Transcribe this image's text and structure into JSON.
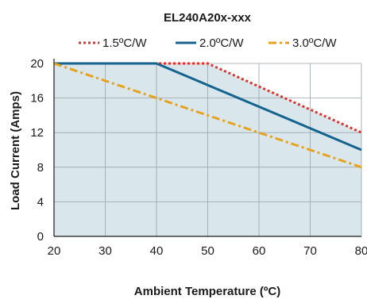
{
  "chart_data": {
    "type": "line",
    "title": "EL240A20x-xxx",
    "xlabel": "Ambient Temperature (ºC)",
    "ylabel": "Load Current (Amps)",
    "xlim": [
      20,
      80
    ],
    "ylim": [
      0,
      20
    ],
    "x_ticks": [
      20,
      30,
      40,
      50,
      60,
      70,
      80
    ],
    "y_ticks": [
      0,
      4,
      8,
      12,
      16,
      20
    ],
    "grid": true,
    "legend_position": "top",
    "area_fill_color": "#d9e6ec",
    "series": [
      {
        "name": "1.5ºC/W",
        "x": [
          20,
          50,
          80
        ],
        "y": [
          20,
          20,
          12
        ],
        "color": "#e0312b",
        "style": "dotted"
      },
      {
        "name": "2.0ºC/W",
        "x": [
          20,
          40,
          80
        ],
        "y": [
          20,
          20,
          10
        ],
        "color": "#15638f",
        "style": "solid"
      },
      {
        "name": "3.0ºC/W",
        "x": [
          20,
          80
        ],
        "y": [
          20,
          8
        ],
        "color": "#e8a21c",
        "style": "dashdot"
      }
    ]
  }
}
